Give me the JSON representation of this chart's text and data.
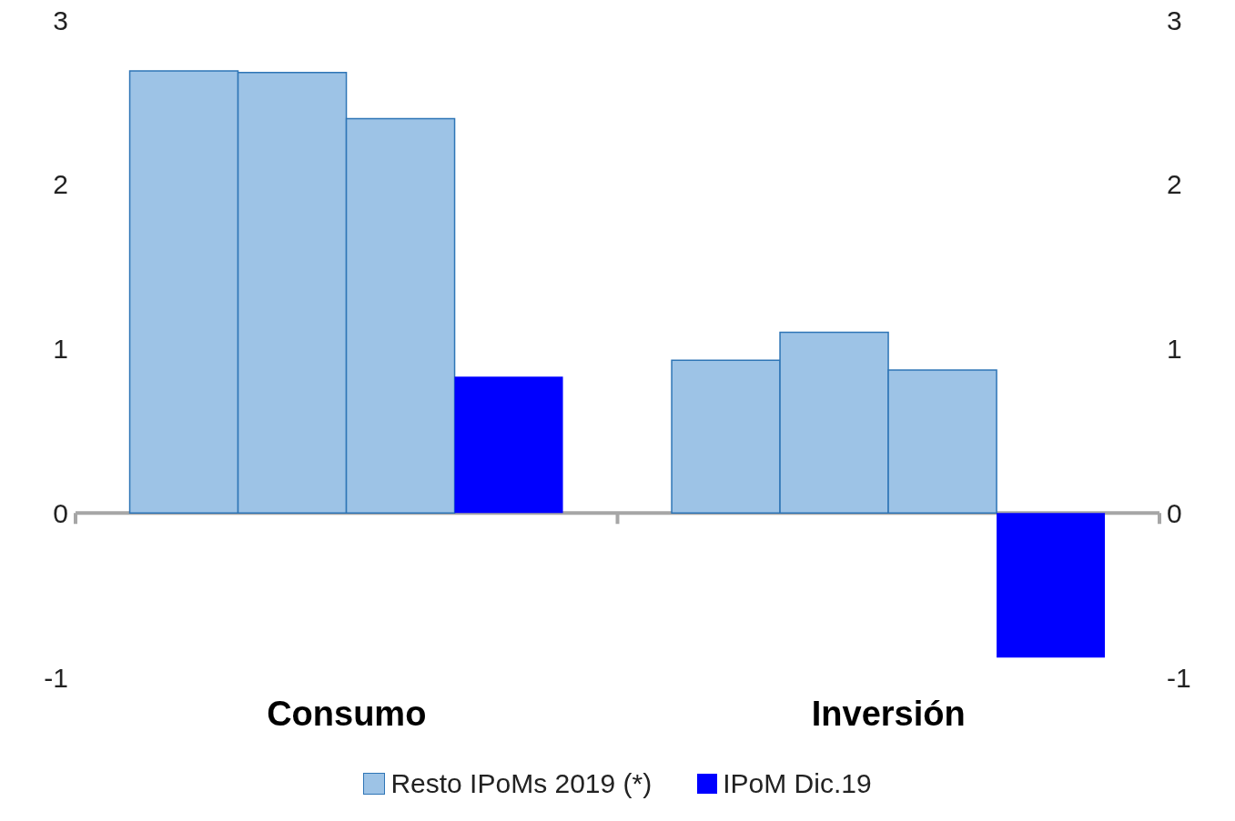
{
  "chart_data": {
    "type": "bar",
    "categories": [
      "Consumo",
      "Inversión"
    ],
    "series": [
      {
        "name": "Resto IPoMs 2019 (*)",
        "color": "#9dc3e6",
        "values": [
          2.69,
          0.93
        ]
      },
      {
        "color": "#9dc3e6",
        "values": [
          2.68,
          1.1
        ]
      },
      {
        "color": "#9dc3e6",
        "values": [
          2.4,
          0.87
        ]
      },
      {
        "name": "IPoM Dic.19",
        "color": "#0000ff",
        "values": [
          0.83,
          -0.88
        ]
      }
    ],
    "ylim": [
      -1,
      3
    ],
    "yticks": [
      -1,
      0,
      1,
      2,
      3
    ],
    "y2lim": [
      -1,
      3
    ],
    "y2ticks": [
      -1,
      0,
      1,
      2,
      3
    ],
    "legend": "bottom"
  }
}
